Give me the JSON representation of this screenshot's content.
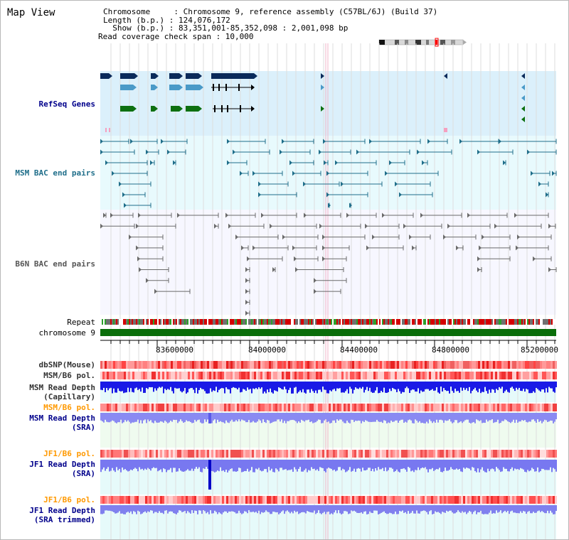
{
  "page": {
    "title": "Map View"
  },
  "header": {
    "line1": "Chromosome     : Chromosome 9, reference assembly (C57BL/6J) (Build 37)",
    "line2": "Length (b.p.) : 124,076,172",
    "line3": "  Show (b.p.) : 83,351,001-85,352,098 : 2,001,098 bp",
    "line4": "Read coverage check span : 10,000"
  },
  "tracks": {
    "refseq": "RefSeq Genes",
    "msm_bac": "MSM BAC end pairs",
    "b6n_bac": "B6N BAC end pairs",
    "repeat": "Repeat",
    "chromosome": "chromosome 9",
    "dbsnp": "dbSNP(Mouse)",
    "msm_pol": "MSM/B6 pol.",
    "msm_depth_cap": "MSM Read Depth\n(Capillary)",
    "msm_pol2": "MSM/B6 pol.",
    "msm_depth_sra": "MSM Read Depth\n(SRA)",
    "jf1_pol": "JF1/B6 pol.",
    "jf1_depth_sra": "JF1 Read Depth\n(SRA)",
    "jf1_pol2": "JF1/B6 pol.",
    "jf1_depth_trim": "JF1 Read Depth\n(SRA trimmed)"
  },
  "ruler": {
    "ticks": [
      "83600000",
      "84000000",
      "84400000",
      "84800000",
      "85200000"
    ]
  },
  "colors": {
    "refseq_bg": "#dbf0fb",
    "msm_bg": "#e8fafd",
    "b6n_bg": "#f7f7ff",
    "cyan_bg": "#e6fafa",
    "green_bg": "#effbef",
    "chromosome": "#0a6e0a",
    "navy": "#0a2a5a",
    "teal": "#1f6e8a",
    "gene_green": "#0d7010",
    "gray": "#6a6a6a",
    "depth_blue": "#1a1ae6",
    "depth_light": "#8080f0",
    "label_blue": "#00008b",
    "label_teal": "#1f6e8a",
    "label_orange": "#ff9900",
    "label_gray": "#333333"
  }
}
